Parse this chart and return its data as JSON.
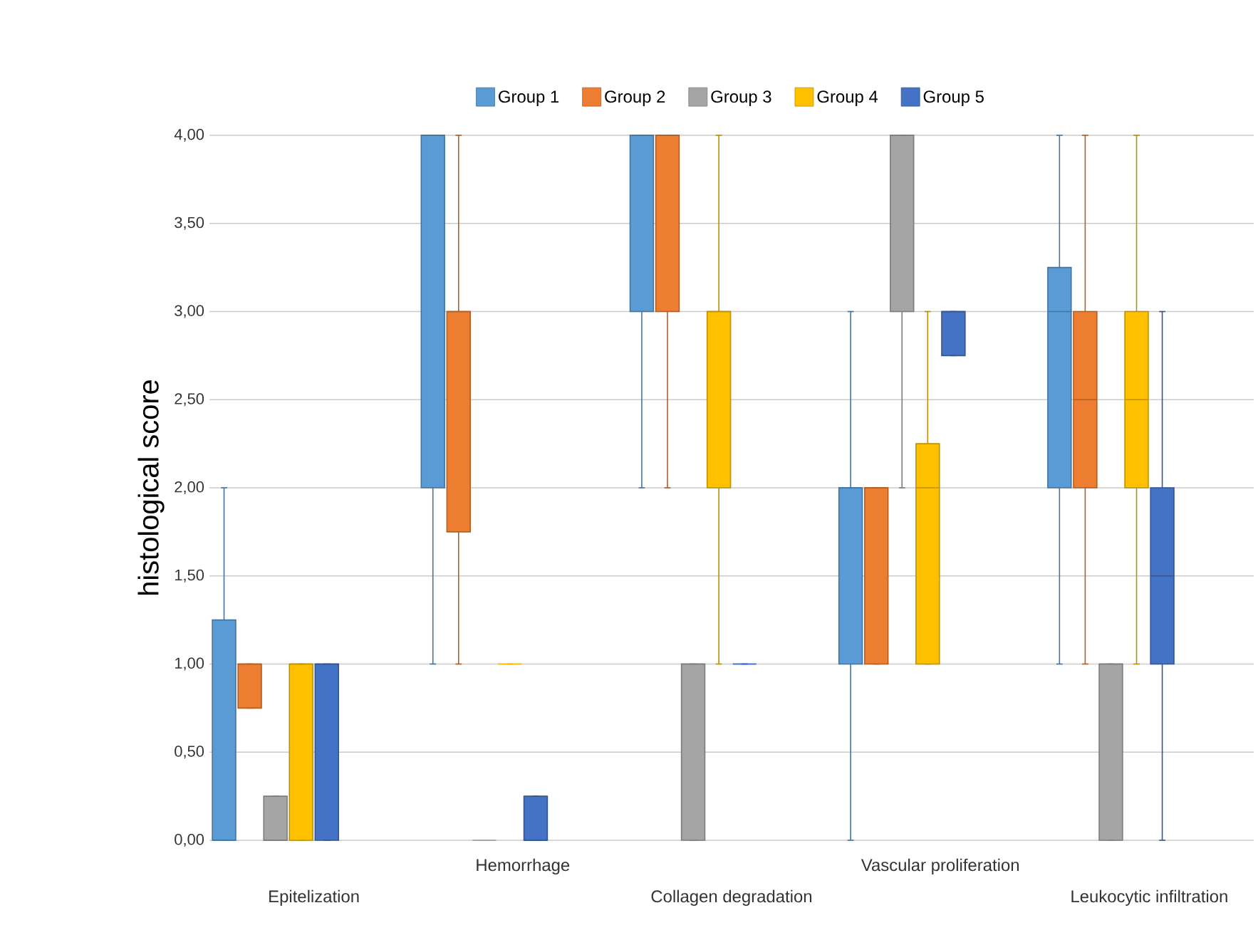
{
  "chart_data": {
    "type": "box",
    "ylabel": "histological score",
    "categories": [
      "Epitelization",
      "Hemorrhage",
      "Collagen degradation",
      "Vascular proliferation",
      "Leukocytic infiltration"
    ],
    "ylim": [
      0,
      4
    ],
    "yticks": [
      {
        "value": 0,
        "label": "0,00"
      },
      {
        "value": 0.5,
        "label": "0,50"
      },
      {
        "value": 1,
        "label": "1,00"
      },
      {
        "value": 1.5,
        "label": "1,50"
      },
      {
        "value": 2,
        "label": "2,00"
      },
      {
        "value": 2.5,
        "label": "2,50"
      },
      {
        "value": 3,
        "label": "3,00"
      },
      {
        "value": 3.5,
        "label": "3,50"
      },
      {
        "value": 4,
        "label": "4,00"
      }
    ],
    "grid": "y",
    "legend": "top",
    "series": [
      {
        "name": "Group 1",
        "color": "#5b9bd5",
        "boxes": [
          {
            "low": 0,
            "q1": 0,
            "median": 0,
            "q3": 1.25,
            "high": 2
          },
          {
            "low": 1,
            "q1": 2,
            "median": 4,
            "q3": 4,
            "high": 4
          },
          {
            "low": 2,
            "q1": 3,
            "median": 4,
            "q3": 4,
            "high": 4
          },
          {
            "low": 0,
            "q1": 1,
            "median": 2,
            "q3": 2,
            "high": 3
          },
          {
            "low": 1,
            "q1": 2,
            "median": 3,
            "q3": 3.25,
            "high": 4
          }
        ]
      },
      {
        "name": "Group 2",
        "color": "#ed7d31",
        "boxes": [
          {
            "low": 0.75,
            "q1": 0.75,
            "median": 1,
            "q3": 1,
            "high": 1
          },
          {
            "low": 1,
            "q1": 1.75,
            "median": 3,
            "q3": 3,
            "high": 4
          },
          {
            "low": 2,
            "q1": 3,
            "median": 4,
            "q3": 4,
            "high": 4
          },
          {
            "low": 1,
            "q1": 1,
            "median": 2,
            "q3": 2,
            "high": 2
          },
          {
            "low": 1,
            "q1": 2,
            "median": 2.5,
            "q3": 3,
            "high": 4
          }
        ]
      },
      {
        "name": "Group 3",
        "color": "#a5a5a5",
        "boxes": [
          {
            "low": 0,
            "q1": 0,
            "median": 0,
            "q3": 0.25,
            "high": 0.25
          },
          {
            "low": 0,
            "q1": 0,
            "median": 0,
            "q3": 0,
            "high": 0
          },
          {
            "low": 0,
            "q1": 0,
            "median": 1,
            "q3": 1,
            "high": 1
          },
          {
            "low": 2,
            "q1": 3,
            "median": 4,
            "q3": 4,
            "high": 4
          },
          {
            "low": 0,
            "q1": 0,
            "median": 1,
            "q3": 1,
            "high": 1
          }
        ]
      },
      {
        "name": "Group 4",
        "color": "#ffc000",
        "boxes": [
          {
            "low": 0,
            "q1": 0,
            "median": 1,
            "q3": 1,
            "high": 1
          },
          {
            "low": 1,
            "q1": 1,
            "median": 1,
            "q3": 1,
            "high": 1
          },
          {
            "low": 1,
            "q1": 2,
            "median": 3,
            "q3": 3,
            "high": 4
          },
          {
            "low": 1,
            "q1": 1,
            "median": 2,
            "q3": 2.25,
            "high": 3
          },
          {
            "low": 1,
            "q1": 2,
            "median": 2.5,
            "q3": 3,
            "high": 4
          }
        ]
      },
      {
        "name": "Group 5",
        "color": "#4472c4",
        "boxes": [
          {
            "low": 0,
            "q1": 0,
            "median": 1,
            "q3": 1,
            "high": 1
          },
          {
            "low": 0,
            "q1": 0,
            "median": 0,
            "q3": 0.25,
            "high": 0.25
          },
          {
            "low": 1,
            "q1": 1,
            "median": 1,
            "q3": 1,
            "high": 1
          },
          {
            "low": 2.75,
            "q1": 2.75,
            "median": 3,
            "q3": 3,
            "high": 3
          },
          {
            "low": 0,
            "q1": 1,
            "median": 1.5,
            "q3": 2,
            "high": 3
          }
        ]
      }
    ]
  }
}
